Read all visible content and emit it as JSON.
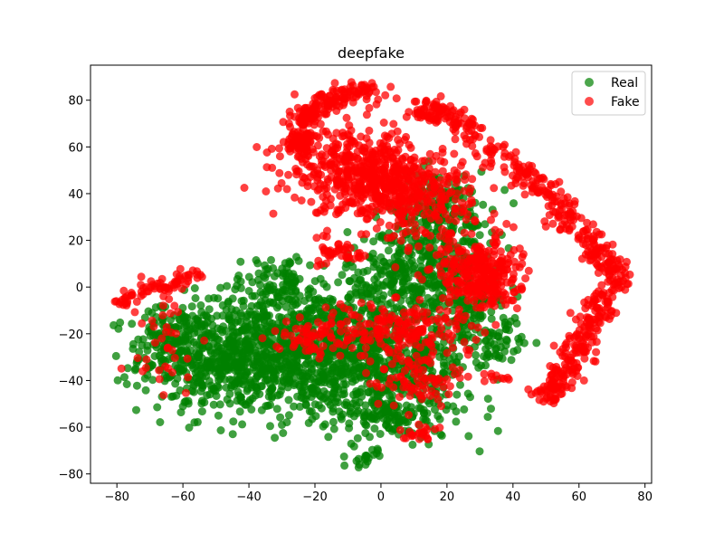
{
  "chart_data": {
    "type": "scatter",
    "title": "deepfake",
    "xlabel": "",
    "ylabel": "",
    "xlim": [
      -88,
      82
    ],
    "ylim": [
      -84,
      95
    ],
    "xticks": [
      -80,
      -60,
      -40,
      -20,
      0,
      20,
      40,
      60,
      80
    ],
    "yticks": [
      -80,
      -60,
      -40,
      -20,
      0,
      20,
      40,
      60,
      80
    ],
    "grid": false,
    "legend_position": "top-right",
    "series": [
      {
        "name": "Real",
        "color": "#008000",
        "clusters": [
          {
            "cx": -45,
            "cy": -30,
            "sx": 14,
            "sy": 12,
            "n": 620
          },
          {
            "cx": -20,
            "cy": -28,
            "sx": 14,
            "sy": 14,
            "n": 560
          },
          {
            "cx": 5,
            "cy": -30,
            "sx": 12,
            "sy": 14,
            "n": 480
          },
          {
            "cx": 10,
            "cy": 5,
            "sx": 10,
            "sy": 10,
            "n": 300
          },
          {
            "cx": 18,
            "cy": 30,
            "sx": 8,
            "sy": 10,
            "n": 220
          },
          {
            "cx": -30,
            "cy": 2,
            "sx": 8,
            "sy": 6,
            "n": 90
          },
          {
            "cx": -63,
            "cy": -18,
            "sx": 5,
            "sy": 6,
            "n": 80
          },
          {
            "cx": 5,
            "cy": -55,
            "sx": 12,
            "sy": 5,
            "n": 110
          },
          {
            "cx": -5,
            "cy": -73,
            "sx": 2,
            "sy": 2,
            "n": 20
          },
          {
            "cx": 35,
            "cy": -25,
            "sx": 4,
            "sy": 6,
            "n": 40
          },
          {
            "cx": 28,
            "cy": -10,
            "sx": 6,
            "sy": 8,
            "n": 90
          }
        ]
      },
      {
        "name": "Fake",
        "color": "#ff0000",
        "clusters": [
          {
            "arc": [
              [
                -2,
                84
              ],
              [
                -14,
                82
              ],
              [
                -22,
                75
              ],
              [
                -25,
                65
              ],
              [
                -24,
                58
              ]
            ],
            "n": 220,
            "sp": 2.6
          },
          {
            "cx": -8,
            "cy": 50,
            "sx": 10,
            "sy": 8,
            "n": 350
          },
          {
            "cx": 8,
            "cy": 40,
            "sx": 10,
            "sy": 10,
            "n": 360
          },
          {
            "arc": [
              [
                10,
                75
              ],
              [
                22,
                74
              ],
              [
                40,
                52
              ],
              [
                50,
                40
              ],
              [
                62,
                22
              ],
              [
                72,
                5
              ],
              [
                65,
                -10
              ],
              [
                60,
                -25
              ],
              [
                55,
                -38
              ],
              [
                50,
                -48
              ]
            ],
            "n": 560,
            "sp": 2.4
          },
          {
            "cx": 30,
            "cy": 5,
            "sx": 6,
            "sy": 8,
            "n": 300
          },
          {
            "cx": -12,
            "cy": 15,
            "sx": 3,
            "sy": 3,
            "n": 40
          },
          {
            "arc": [
              [
                -80,
                -7
              ],
              [
                -72,
                -2
              ],
              [
                -62,
                2
              ],
              [
                -55,
                6
              ]
            ],
            "n": 70,
            "sp": 1.6
          },
          {
            "cx": 5,
            "cy": -18,
            "sx": 12,
            "sy": 6,
            "n": 180
          },
          {
            "cx": 10,
            "cy": -40,
            "sx": 6,
            "sy": 6,
            "n": 80
          },
          {
            "cx": -22,
            "cy": -22,
            "sx": 5,
            "sy": 3,
            "n": 50
          },
          {
            "cx": 12,
            "cy": -62,
            "sx": 3,
            "sy": 2,
            "n": 20
          },
          {
            "cx": -68,
            "cy": -20,
            "sx": 6,
            "sy": 12,
            "n": 40
          },
          {
            "cx": 35,
            "cy": -38,
            "sx": 2,
            "sy": 2,
            "n": 10
          }
        ]
      }
    ]
  }
}
